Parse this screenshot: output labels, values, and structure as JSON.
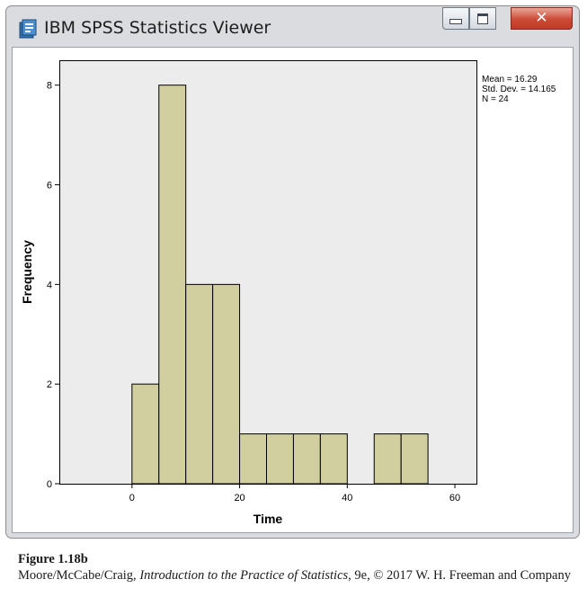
{
  "window": {
    "title": "IBM SPSS Statistics Viewer",
    "icon": "spss-viewer-icon",
    "controls": {
      "minimize": "minimize-icon",
      "maximize": "maximize-icon",
      "close": "close-icon"
    }
  },
  "chart_data": {
    "type": "bar",
    "title": "",
    "xlabel": "Time",
    "ylabel": "Frequency",
    "bin_edges": [
      0,
      5,
      10,
      15,
      20,
      25,
      30,
      35,
      40,
      45,
      50,
      55
    ],
    "values": [
      2,
      8,
      4,
      4,
      1,
      1,
      1,
      1,
      0,
      1,
      1
    ],
    "xlim": [
      -13.5,
      64
    ],
    "ylim": [
      0,
      8.5
    ],
    "xticks": [
      0,
      20,
      40,
      60
    ],
    "yticks": [
      0,
      2,
      4,
      6,
      8
    ],
    "stats": [
      "Mean = 16.29",
      "Std. Dev. = 14.165",
      "N = 24"
    ],
    "bar_color": "#d1cf9f",
    "plot_background": "#ececec",
    "grid": false,
    "legend": "none"
  },
  "caption": {
    "figure_label": "Figure 1.18b",
    "authors": "Moore/McCabe/Craig, ",
    "book_title": "Introduction to the Practice of Statistics",
    "publisher": ", 9e, © 2017 W. H. Freeman and Company"
  }
}
